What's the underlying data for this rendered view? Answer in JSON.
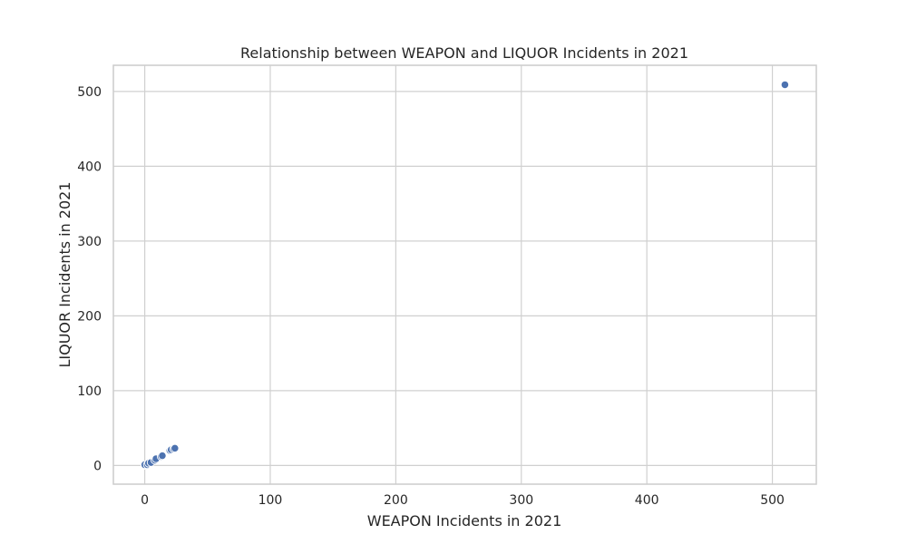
{
  "chart_data": {
    "type": "scatter",
    "title": "Relationship between WEAPON and LIQUOR Incidents in 2021",
    "xlabel": "WEAPON Incidents in 2021",
    "ylabel": "LIQUOR Incidents in 2021",
    "xlim": [
      -25,
      535
    ],
    "ylim": [
      -25,
      535
    ],
    "xticks": [
      0,
      100,
      200,
      300,
      400,
      500
    ],
    "yticks": [
      0,
      100,
      200,
      300,
      400,
      500
    ],
    "grid": true,
    "colors": {
      "point": "#4c72b0",
      "grid": "#d0d0d0",
      "frame": "#cccccc"
    },
    "points": [
      {
        "x": 0,
        "y": 0
      },
      {
        "x": 1,
        "y": 0
      },
      {
        "x": 0,
        "y": 1
      },
      {
        "x": 2,
        "y": 1
      },
      {
        "x": 3,
        "y": 3
      },
      {
        "x": 5,
        "y": 4
      },
      {
        "x": 8,
        "y": 7
      },
      {
        "x": 9,
        "y": 9
      },
      {
        "x": 13,
        "y": 12
      },
      {
        "x": 14,
        "y": 13
      },
      {
        "x": 20,
        "y": 20
      },
      {
        "x": 21,
        "y": 21
      },
      {
        "x": 23,
        "y": 22
      },
      {
        "x": 24,
        "y": 23
      },
      {
        "x": 510,
        "y": 509
      }
    ]
  }
}
